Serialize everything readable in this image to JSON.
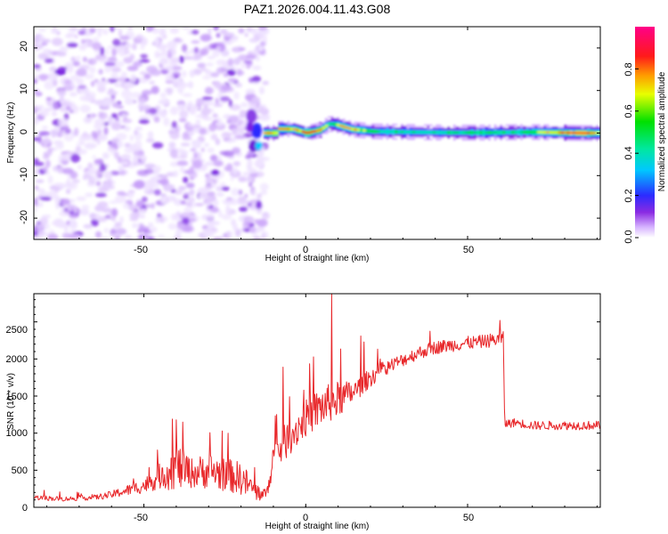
{
  "figure": {
    "title": "PAZ1.2026.004.11.43.G08"
  },
  "chart_data": [
    {
      "type": "heatmap",
      "title": "",
      "xlabel": "Height of straight line (km)",
      "ylabel": "Frequency (Hz)",
      "xlim": [
        -84,
        91
      ],
      "ylim": [
        -25,
        25
      ],
      "xticks": [
        -50,
        0,
        50
      ],
      "yticks": [
        -20,
        -10,
        0,
        10,
        20
      ],
      "xtick_labels": [
        "-50",
        "0",
        "50"
      ],
      "ytick_labels": [
        "-20",
        "-10",
        "0",
        "10",
        "20"
      ],
      "noise_region_x": [
        -84,
        -14
      ],
      "signal_start_x": -14,
      "signal_frequency_hz": 0.8,
      "signal_track": [
        {
          "x": -9,
          "f": 1.0,
          "amp": 0.9
        },
        {
          "x": -4,
          "f": 0.9,
          "amp": 0.75
        },
        {
          "x": 0,
          "f": 0.0,
          "amp": 0.9
        },
        {
          "x": 4,
          "f": 0.7,
          "amp": 0.85
        },
        {
          "x": 7,
          "f": 2.2,
          "amp": 0.55
        },
        {
          "x": 9,
          "f": 2.0,
          "amp": 0.7
        },
        {
          "x": 14,
          "f": 0.9,
          "amp": 0.8
        },
        {
          "x": 20,
          "f": 0.4,
          "amp": 0.6
        },
        {
          "x": 27,
          "f": 0.3,
          "amp": 0.55
        },
        {
          "x": 35,
          "f": 0.2,
          "amp": 0.5
        },
        {
          "x": 45,
          "f": 0.1,
          "amp": 0.55
        },
        {
          "x": 56,
          "f": 0.1,
          "amp": 0.6
        },
        {
          "x": 65,
          "f": 0.2,
          "amp": 0.55
        },
        {
          "x": 72,
          "f": 0.2,
          "amp": 0.7
        },
        {
          "x": 78,
          "f": 0.1,
          "amp": 0.8
        },
        {
          "x": 85,
          "f": 0.0,
          "amp": 0.95
        },
        {
          "x": 90,
          "f": 0.0,
          "amp": 0.75
        }
      ],
      "colorbar": {
        "label": "Normalized spectral amplitude",
        "range": [
          0,
          1
        ],
        "ticks": [
          0.0,
          0.2,
          0.4,
          0.6,
          0.8
        ],
        "tick_labels": [
          "0.0",
          "0.2",
          "0.4",
          "0.6",
          "0.8"
        ],
        "colormap": "rainbow (white, violet, blue, cyan, green, yellow, orange, red, magenta)"
      }
    },
    {
      "type": "line",
      "title": "",
      "xlabel": "Height of straight line (km)",
      "ylabel": "SNR (10 * v/v)",
      "xlim": [
        -84,
        91
      ],
      "ylim": [
        0,
        2880
      ],
      "xticks": [
        -50,
        0,
        50
      ],
      "yticks": [
        0,
        500,
        1000,
        1500,
        2000,
        2500
      ],
      "xtick_labels": [
        "-50",
        "0",
        "50"
      ],
      "ytick_labels": [
        "0",
        "500",
        "1000",
        "1500",
        "2000",
        "2500"
      ],
      "series": [
        {
          "name": "SNR",
          "color": "#e8282b",
          "x": [
            -84,
            -75,
            -65,
            -60,
            -55,
            -50,
            -45,
            -40,
            -35,
            -30,
            -25,
            -20,
            -15,
            -12,
            -10,
            -5,
            0,
            5,
            10,
            15,
            20,
            25,
            30,
            35,
            40,
            45,
            50,
            55,
            60,
            61,
            61.5,
            65,
            70,
            75,
            80,
            85,
            91
          ],
          "base": [
            120,
            100,
            120,
            150,
            200,
            250,
            350,
            420,
            380,
            400,
            350,
            300,
            150,
            150,
            600,
            850,
            1100,
            1250,
            1350,
            1500,
            1700,
            1850,
            1950,
            2050,
            2120,
            2150,
            2180,
            2200,
            2230,
            2230,
            1100,
            1120,
            1080,
            1080,
            1080,
            1080,
            1080
          ],
          "spread": [
            70,
            60,
            70,
            100,
            150,
            200,
            350,
            650,
            400,
            500,
            450,
            450,
            250,
            150,
            450,
            500,
            500,
            550,
            500,
            300,
            250,
            200,
            180,
            180,
            180,
            180,
            180,
            180,
            200,
            200,
            120,
            120,
            120,
            120,
            120,
            120,
            120
          ],
          "spikes": [
            {
              "x": -40,
              "value": 1180
            },
            {
              "x": -38,
              "value": 1150
            },
            {
              "x": -24,
              "value": 1000
            },
            {
              "x": -7,
              "value": 1890
            },
            {
              "x": 8,
              "value": 2880
            },
            {
              "x": 17,
              "value": 2310
            },
            {
              "x": 18,
              "value": 2230
            },
            {
              "x": 23,
              "value": 2000
            },
            {
              "x": 60,
              "value": 2520
            }
          ]
        }
      ]
    }
  ]
}
